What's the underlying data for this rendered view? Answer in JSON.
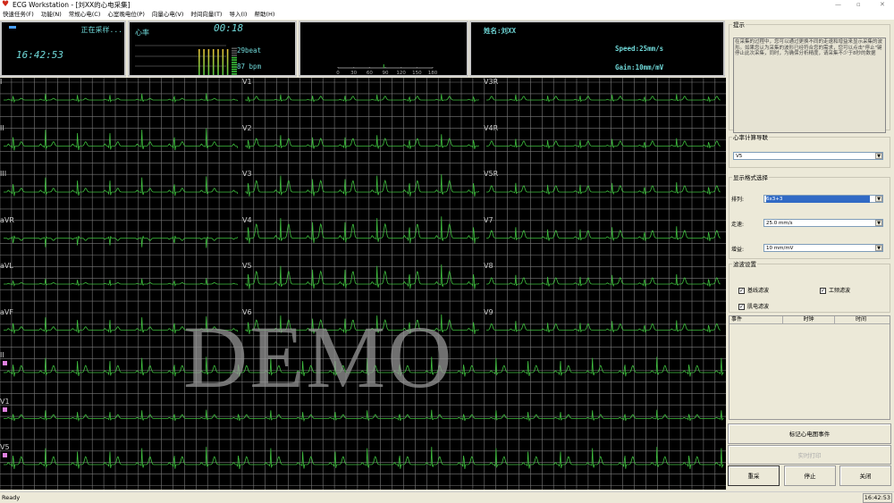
{
  "window": {
    "title": "ECG Workstation - [刘XX的心电采集]"
  },
  "menu": [
    "快速任务(F)",
    "功能(N)",
    "常规心电(C)",
    "心室晚电位(P)",
    "向量心电(V)",
    "时间向量(T)",
    "导入(I)",
    "帮助(H)"
  ],
  "panel_status": {
    "status": "正在采样...",
    "clock": "16:42:53"
  },
  "panel_hr": {
    "label": "心率",
    "elapsed": "00:18",
    "beats": "29beat",
    "bpm": "87 bpm",
    "bar_level": 0.6
  },
  "panel_scale": {
    "ticks": [
      "0",
      "30",
      "60",
      "90",
      "120",
      "150",
      "180"
    ],
    "marker_value": 87
  },
  "panel_patient": {
    "name": "姓名:刘XX",
    "speed": "Speed:25mm/s",
    "gain": "Gain:10mm/mV"
  },
  "ecg": {
    "grid_color": "#7a7a7a",
    "trace_color": "#3fbf3f",
    "columns": [
      [
        "I",
        "II",
        "III",
        "aVR",
        "aVL",
        "aVF"
      ],
      [
        "V1",
        "V2",
        "V3",
        "V4",
        "V5",
        "V6"
      ],
      [
        "V3R",
        "V4R",
        "V5R",
        "V7",
        "V8",
        "V9"
      ]
    ],
    "rhythm": [
      "II",
      "V1",
      "V5"
    ],
    "watermark": "DEMO"
  },
  "right": {
    "hint_title": "提示",
    "hint_text": "在采集的过程中，您可以通过更换不同的走速和增益来显示采集的波形。如果您认为采集的波形已经符合您的需求，您可以点击\"停止\"键停止此次采集，同时，为确保分析精度，请采集不少于8秒的数据",
    "hr_lead_title": "心率计算导联",
    "hr_lead_value": "V5",
    "display_title": "显示格式选择",
    "arrange_label": "排列:",
    "arrange_value": "6x3+3",
    "speed_label": "走速:",
    "speed_value": "25.0  mm/s",
    "gain_label": "增益:",
    "gain_value": "10 mm/mV",
    "filter_title": "滤波设置",
    "filters": [
      {
        "label": "基线滤波",
        "checked": true
      },
      {
        "label": "工频滤波",
        "checked": true
      },
      {
        "label": "肌电滤波",
        "checked": true
      }
    ],
    "event_cols": [
      "事件",
      "时钟",
      "时间"
    ],
    "mark_btn": "标记心电图事件",
    "print_btn": "实时打印",
    "restart_btn": "重采",
    "stop_btn": "停止",
    "close_btn": "关闭"
  },
  "status": {
    "text": "Ready",
    "time": "16:42:53"
  }
}
